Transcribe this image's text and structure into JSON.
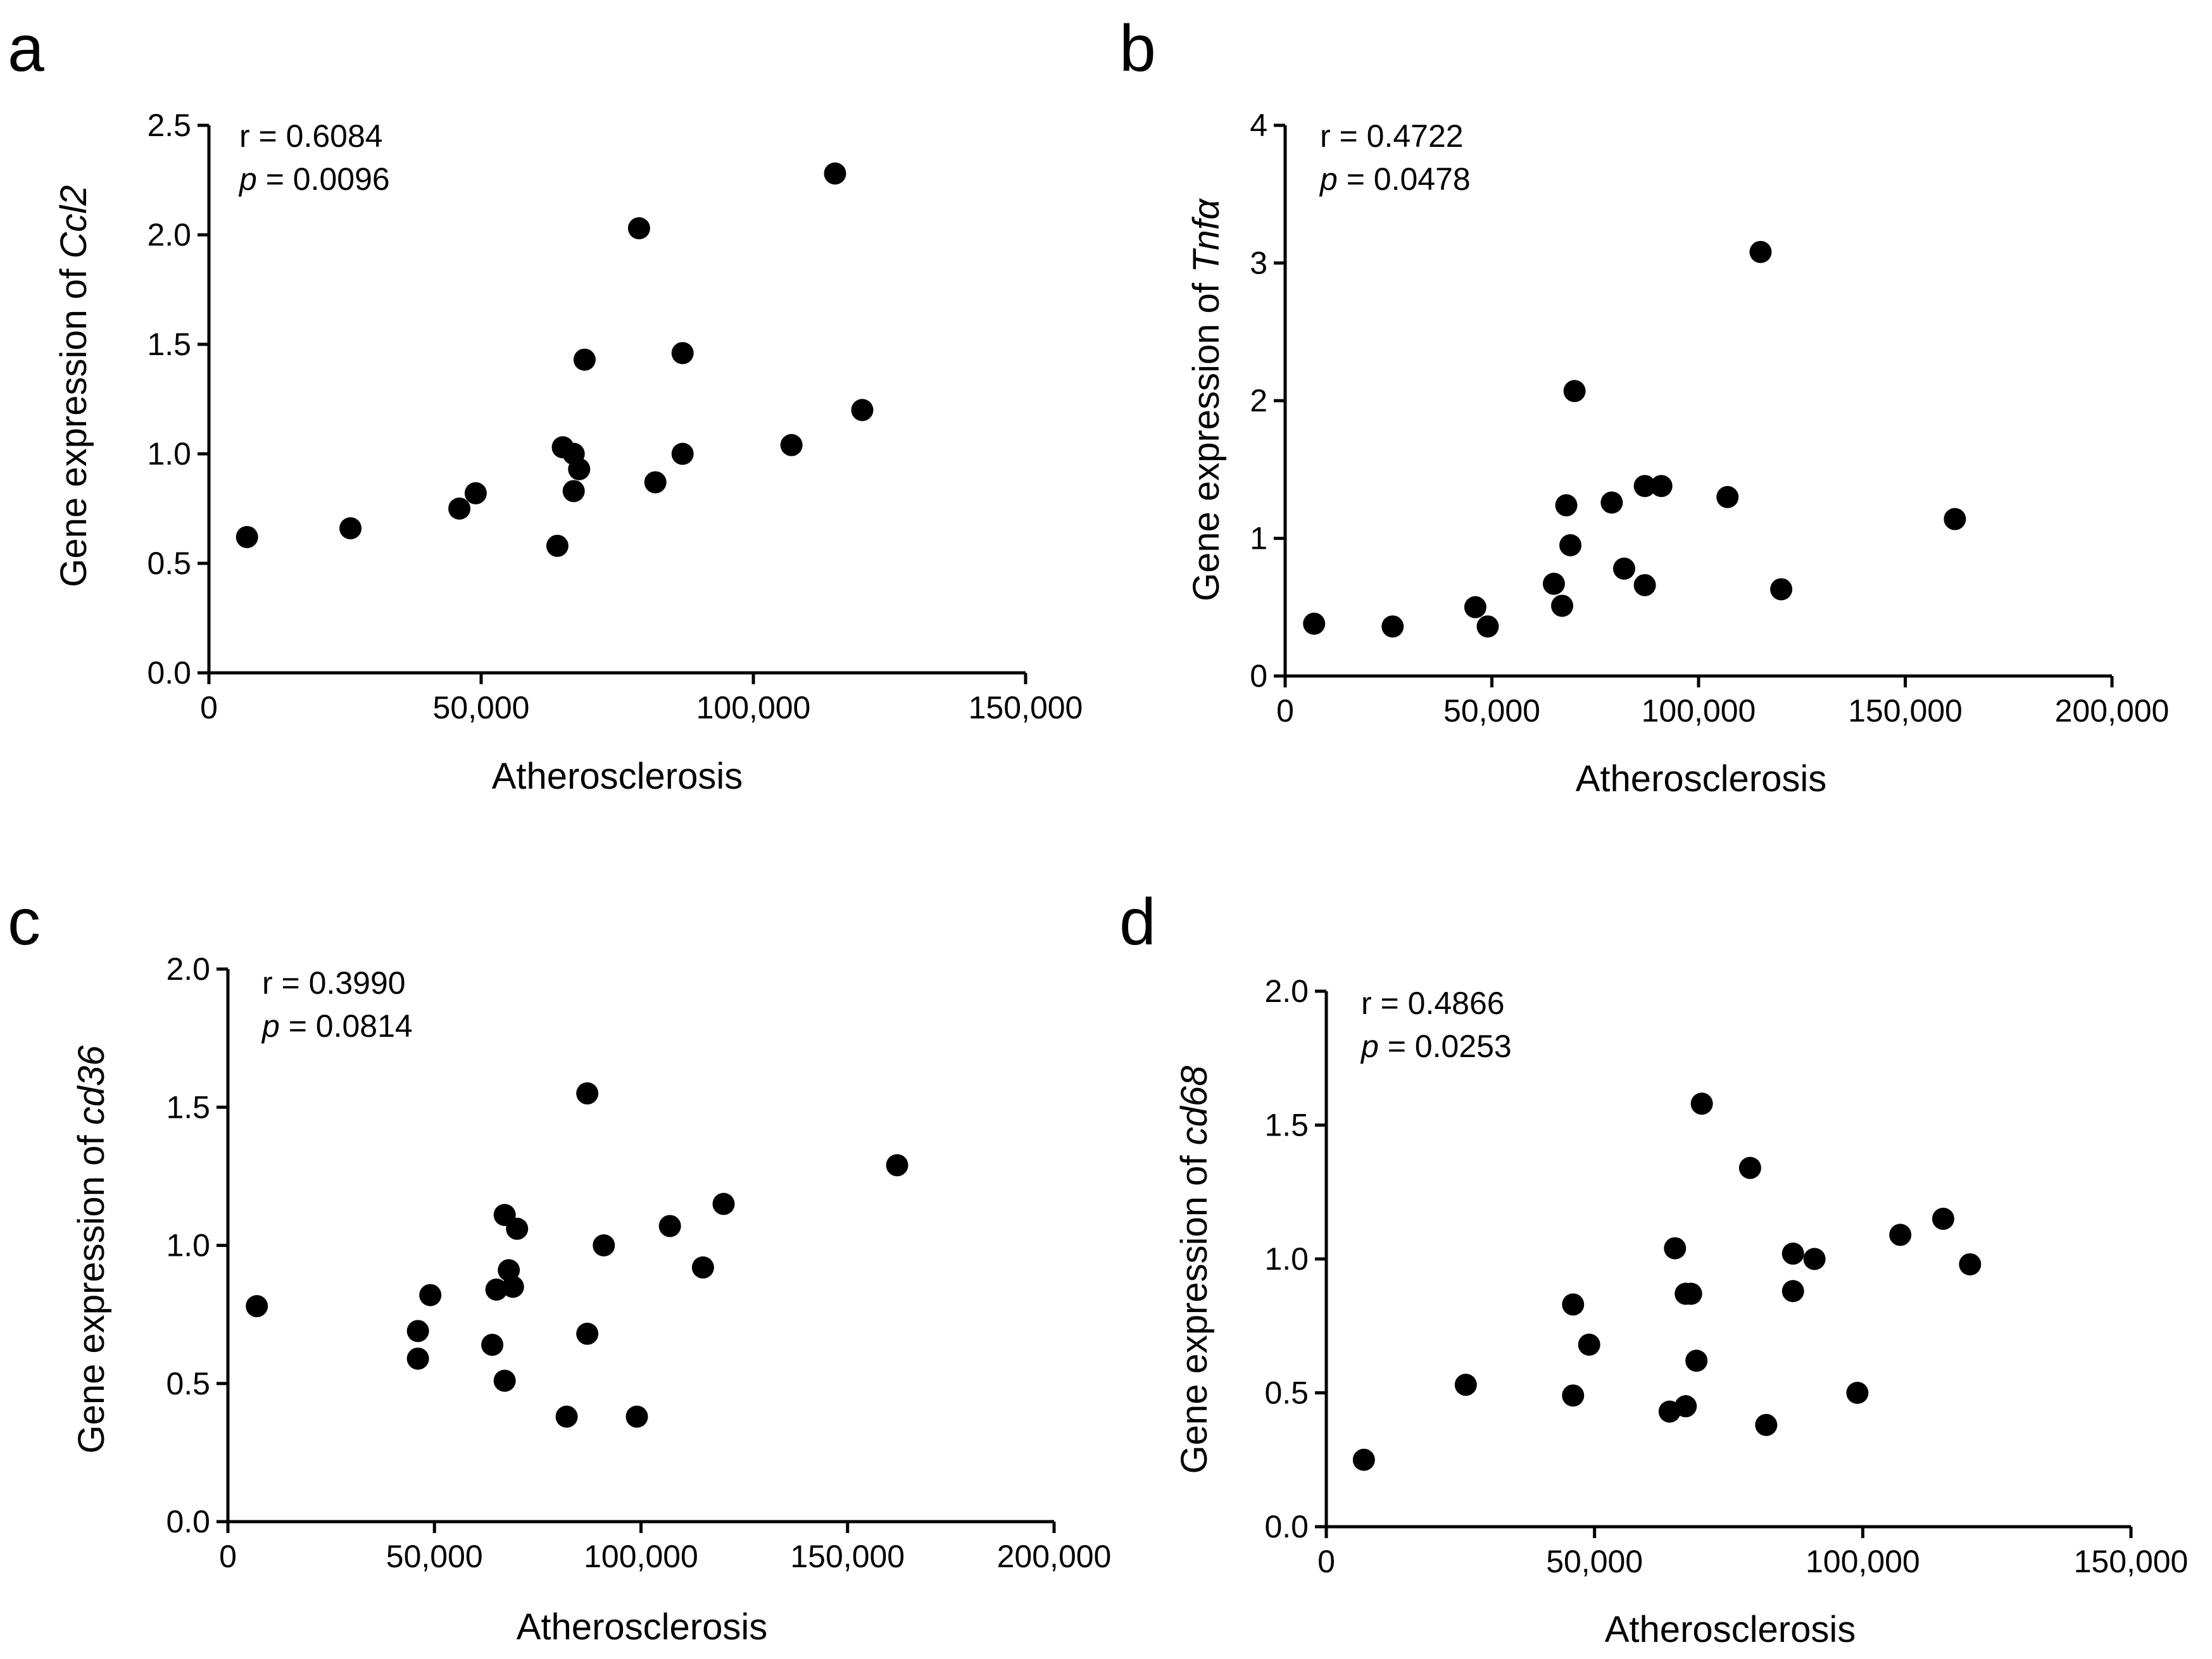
{
  "chart_data": [
    {
      "id": "a",
      "type": "scatter",
      "panel_label": "a",
      "xlabel": "Atherosclerosis",
      "ylabel_prefix": "Gene expression of ",
      "ylabel_gene": "Ccl2",
      "r_text": "r = 0.6084",
      "p_symbol": "p",
      "p_value": " = 0.0096",
      "xlim": [
        0,
        150000
      ],
      "ylim": [
        0,
        2.5
      ],
      "xticks": [
        0,
        50000,
        100000,
        150000
      ],
      "xtick_labels": [
        "0",
        "50,000",
        "100,000",
        "150,000"
      ],
      "yticks": [
        0,
        0.5,
        1.0,
        1.5,
        2.0,
        2.5
      ],
      "ytick_labels": [
        "0.0",
        "0.5",
        "1.0",
        "1.5",
        "2.0",
        "2.5"
      ],
      "points": [
        {
          "x": 7000,
          "y": 0.62
        },
        {
          "x": 26000,
          "y": 0.66
        },
        {
          "x": 46000,
          "y": 0.75
        },
        {
          "x": 49000,
          "y": 0.82
        },
        {
          "x": 64000,
          "y": 0.58
        },
        {
          "x": 65000,
          "y": 1.03
        },
        {
          "x": 67000,
          "y": 1.0
        },
        {
          "x": 67000,
          "y": 0.83
        },
        {
          "x": 68000,
          "y": 0.93
        },
        {
          "x": 69000,
          "y": 1.43
        },
        {
          "x": 79000,
          "y": 2.03
        },
        {
          "x": 82000,
          "y": 0.87
        },
        {
          "x": 87000,
          "y": 1.46
        },
        {
          "x": 87000,
          "y": 1.0
        },
        {
          "x": 107000,
          "y": 1.04
        },
        {
          "x": 115000,
          "y": 2.28
        },
        {
          "x": 120000,
          "y": 1.2
        }
      ]
    },
    {
      "id": "b",
      "type": "scatter",
      "panel_label": "b",
      "xlabel": "Atherosclerosis",
      "ylabel_prefix": "Gene expression of ",
      "ylabel_gene": "Tnfα",
      "r_text": "r = 0.4722",
      "p_symbol": "p",
      "p_value": " = 0.0478",
      "xlim": [
        0,
        200000
      ],
      "ylim": [
        0,
        4
      ],
      "xticks": [
        0,
        50000,
        100000,
        150000,
        200000
      ],
      "xtick_labels": [
        "0",
        "50,000",
        "100,000",
        "150,000",
        "200,000"
      ],
      "yticks": [
        0,
        1,
        2,
        3,
        4
      ],
      "ytick_labels": [
        "0",
        "1",
        "2",
        "3",
        "4"
      ],
      "points": [
        {
          "x": 7000,
          "y": 0.38
        },
        {
          "x": 26000,
          "y": 0.36
        },
        {
          "x": 46000,
          "y": 0.5
        },
        {
          "x": 49000,
          "y": 0.36
        },
        {
          "x": 65000,
          "y": 0.67
        },
        {
          "x": 67000,
          "y": 0.51
        },
        {
          "x": 68000,
          "y": 1.24
        },
        {
          "x": 69000,
          "y": 0.95
        },
        {
          "x": 70000,
          "y": 2.07
        },
        {
          "x": 79000,
          "y": 1.26
        },
        {
          "x": 82000,
          "y": 0.78
        },
        {
          "x": 87000,
          "y": 1.38
        },
        {
          "x": 87000,
          "y": 0.66
        },
        {
          "x": 91000,
          "y": 1.38
        },
        {
          "x": 107000,
          "y": 1.3
        },
        {
          "x": 115000,
          "y": 3.08
        },
        {
          "x": 120000,
          "y": 0.63
        },
        {
          "x": 162000,
          "y": 1.14
        }
      ]
    },
    {
      "id": "c",
      "type": "scatter",
      "panel_label": "c",
      "xlabel": "Atherosclerosis",
      "ylabel_prefix": "Gene expression of ",
      "ylabel_gene": "cd36",
      "r_text": "r = 0.3990",
      "p_symbol": "p",
      "p_value": " = 0.0814",
      "xlim": [
        0,
        200000
      ],
      "ylim": [
        0,
        2.0
      ],
      "xticks": [
        0,
        50000,
        100000,
        150000,
        200000
      ],
      "xtick_labels": [
        "0",
        "50,000",
        "100,000",
        "150,000",
        "200,000"
      ],
      "yticks": [
        0,
        0.5,
        1.0,
        1.5,
        2.0
      ],
      "ytick_labels": [
        "0.0",
        "0.5",
        "1.0",
        "1.5",
        "2.0"
      ],
      "points": [
        {
          "x": 7000,
          "y": 0.78
        },
        {
          "x": 46000,
          "y": 0.69
        },
        {
          "x": 46000,
          "y": 0.59
        },
        {
          "x": 49000,
          "y": 0.82
        },
        {
          "x": 64000,
          "y": 0.64
        },
        {
          "x": 65000,
          "y": 0.84
        },
        {
          "x": 67000,
          "y": 1.11
        },
        {
          "x": 67000,
          "y": 0.51
        },
        {
          "x": 68000,
          "y": 0.91
        },
        {
          "x": 69000,
          "y": 0.85
        },
        {
          "x": 70000,
          "y": 1.06
        },
        {
          "x": 82000,
          "y": 0.38
        },
        {
          "x": 87000,
          "y": 1.55
        },
        {
          "x": 87000,
          "y": 0.68
        },
        {
          "x": 91000,
          "y": 1.0
        },
        {
          "x": 99000,
          "y": 0.38
        },
        {
          "x": 107000,
          "y": 1.07
        },
        {
          "x": 115000,
          "y": 0.92
        },
        {
          "x": 120000,
          "y": 1.15
        },
        {
          "x": 162000,
          "y": 1.29
        }
      ]
    },
    {
      "id": "d",
      "type": "scatter",
      "panel_label": "d",
      "xlabel": "Atherosclerosis",
      "ylabel_prefix": "Gene expression of ",
      "ylabel_gene": "cd68",
      "r_text": "r = 0.4866",
      "p_symbol": "p",
      "p_value": " = 0.0253",
      "xlim": [
        0,
        150000
      ],
      "ylim": [
        0,
        2.0
      ],
      "xticks": [
        0,
        50000,
        100000,
        150000
      ],
      "xtick_labels": [
        "0",
        "50,000",
        "100,000",
        "150,000"
      ],
      "yticks": [
        0,
        0.5,
        1.0,
        1.5,
        2.0
      ],
      "ytick_labels": [
        "0.0",
        "0.5",
        "1.0",
        "1.5",
        "2.0"
      ],
      "points": [
        {
          "x": 7000,
          "y": 0.25
        },
        {
          "x": 26000,
          "y": 0.53
        },
        {
          "x": 46000,
          "y": 0.83
        },
        {
          "x": 46000,
          "y": 0.49
        },
        {
          "x": 49000,
          "y": 0.68
        },
        {
          "x": 64000,
          "y": 0.43
        },
        {
          "x": 65000,
          "y": 1.04
        },
        {
          "x": 67000,
          "y": 0.87
        },
        {
          "x": 67000,
          "y": 0.45
        },
        {
          "x": 68000,
          "y": 0.87
        },
        {
          "x": 69000,
          "y": 0.62
        },
        {
          "x": 70000,
          "y": 1.58
        },
        {
          "x": 79000,
          "y": 1.34
        },
        {
          "x": 82000,
          "y": 0.38
        },
        {
          "x": 87000,
          "y": 1.02
        },
        {
          "x": 87000,
          "y": 0.88
        },
        {
          "x": 91000,
          "y": 1.0
        },
        {
          "x": 99000,
          "y": 0.5
        },
        {
          "x": 107000,
          "y": 1.09
        },
        {
          "x": 115000,
          "y": 1.15
        },
        {
          "x": 120000,
          "y": 0.98
        }
      ]
    }
  ]
}
